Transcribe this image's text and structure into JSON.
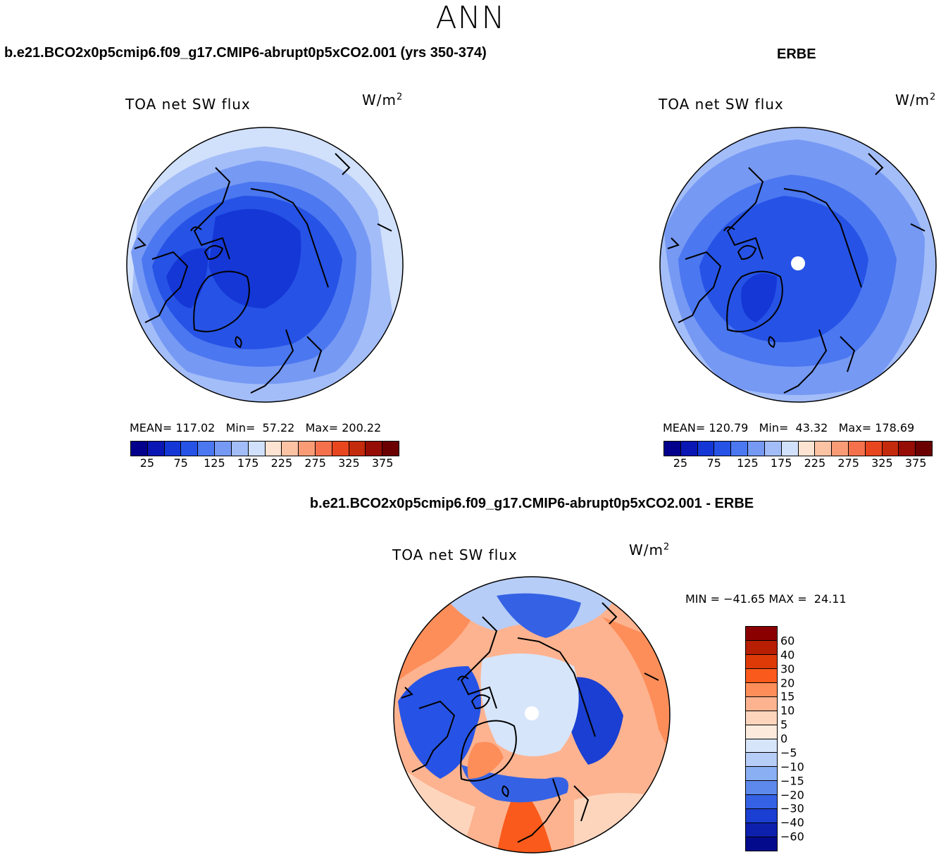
{
  "season": "ANN",
  "panels": [
    {
      "title": "b.e21.BCO2x0p5cmip6.f09_g17.CMIP6-abrupt0p5xCO2.001 (yrs 350-374)",
      "variable": "TOA net SW flux",
      "units": "W/m",
      "units_exp": "2",
      "stats": {
        "mean_label": "MEAN=",
        "mean": "117.02",
        "min_label": "Min=",
        "min": "57.22",
        "max_label": "Max=",
        "max": "200.22"
      }
    },
    {
      "title": "ERBE",
      "variable": "TOA net SW flux",
      "units": "W/m",
      "units_exp": "2",
      "stats": {
        "mean_label": "MEAN=",
        "mean": "120.79",
        "min_label": "Min=",
        "min": "43.32",
        "max_label": "Max=",
        "max": "178.69"
      }
    },
    {
      "title": "b.e21.BCO2x0p5cmip6.f09_g17.CMIP6-abrupt0p5xCO2.001 - ERBE",
      "variable": "TOA net SW flux",
      "units": "W/m",
      "units_exp": "2",
      "minmax": {
        "min_label": "MIN =",
        "min": "−41.65",
        "max_label": "MAX =",
        "max": "24.11"
      }
    }
  ],
  "field_colorbar": {
    "colors": [
      "#03008c",
      "#0a17b4",
      "#1537d6",
      "#2653e6",
      "#4b77f0",
      "#7699f4",
      "#a3bdf8",
      "#d1e0fb",
      "#fde3d1",
      "#fcc2a4",
      "#f99c76",
      "#f4714c",
      "#e8461f",
      "#c42a0c",
      "#960d05",
      "#6b0000"
    ],
    "labels": [
      "25",
      "75",
      "125",
      "175",
      "225",
      "275",
      "325",
      "375"
    ]
  },
  "diff_colorbar": {
    "colors": [
      "#8a0000",
      "#b71e02",
      "#dd3a08",
      "#fa5a1b",
      "#fd8e5a",
      "#fdb390",
      "#fdd5bd",
      "#fcebdc",
      "#d6e5fa",
      "#b6cdf7",
      "#8aaff3",
      "#5d89ec",
      "#3562e4",
      "#1a3fd2",
      "#0d20ad",
      "#040a8c"
    ],
    "labels": [
      "60",
      "40",
      "30",
      "20",
      "15",
      "10",
      "5",
      "0",
      "−5",
      "−10",
      "−15",
      "−20",
      "−30",
      "−40",
      "−60"
    ]
  }
}
